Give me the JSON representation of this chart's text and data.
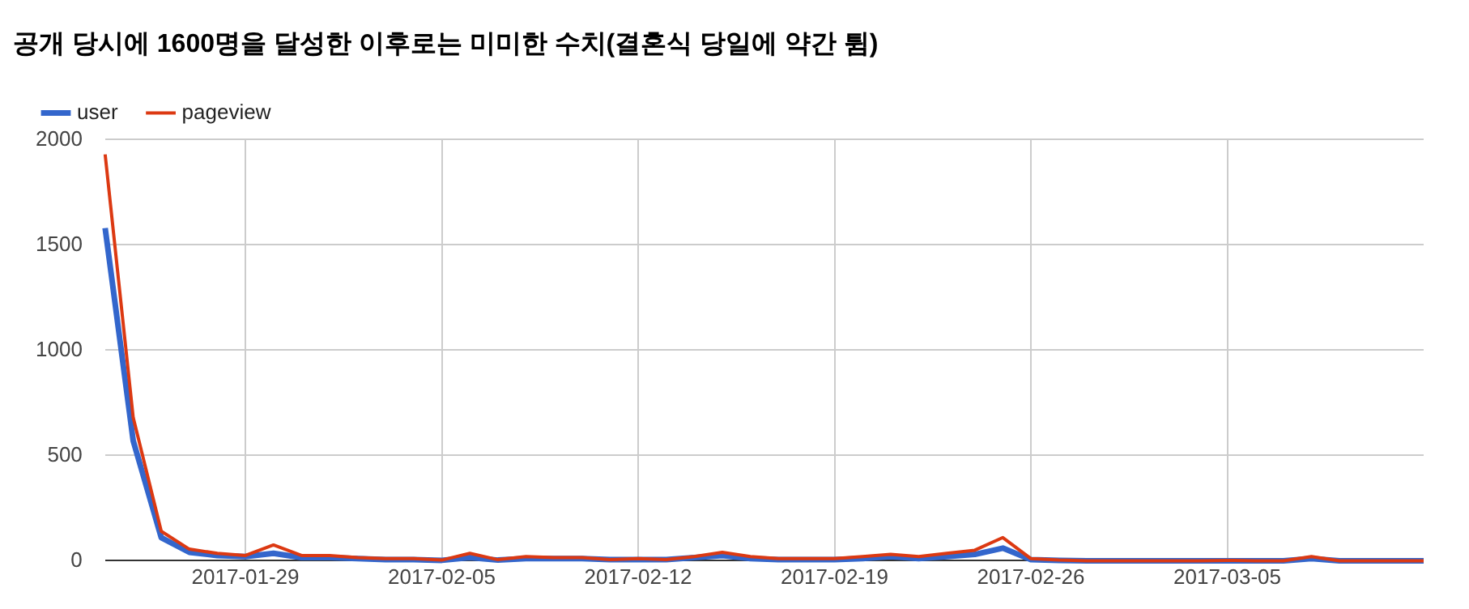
{
  "chart_data": {
    "type": "line",
    "title": "공개 당시에 1600명을 달성한 이후로는 미미한 수치(결혼식 당일에 약간 튐)",
    "x": [
      "2017-01-24",
      "2017-01-25",
      "2017-01-26",
      "2017-01-27",
      "2017-01-28",
      "2017-01-29",
      "2017-01-30",
      "2017-01-31",
      "2017-02-01",
      "2017-02-02",
      "2017-02-03",
      "2017-02-04",
      "2017-02-05",
      "2017-02-06",
      "2017-02-07",
      "2017-02-08",
      "2017-02-09",
      "2017-02-10",
      "2017-02-11",
      "2017-02-12",
      "2017-02-13",
      "2017-02-14",
      "2017-02-15",
      "2017-02-16",
      "2017-02-17",
      "2017-02-18",
      "2017-02-19",
      "2017-02-20",
      "2017-02-21",
      "2017-02-22",
      "2017-02-23",
      "2017-02-24",
      "2017-02-25",
      "2017-02-26",
      "2017-02-27",
      "2017-02-28",
      "2017-03-01",
      "2017-03-02",
      "2017-03-03",
      "2017-03-04",
      "2017-03-05",
      "2017-03-06",
      "2017-03-07",
      "2017-03-08",
      "2017-03-09",
      "2017-03-10",
      "2017-03-11",
      "2017-03-12"
    ],
    "series": [
      {
        "name": "user",
        "color": "#3366cc",
        "values": [
          1580,
          570,
          110,
          40,
          25,
          20,
          35,
          15,
          15,
          10,
          5,
          5,
          2,
          15,
          3,
          10,
          10,
          10,
          5,
          5,
          5,
          15,
          25,
          10,
          5,
          5,
          5,
          10,
          20,
          10,
          20,
          30,
          60,
          5,
          2,
          0,
          0,
          0,
          0,
          0,
          0,
          0,
          0,
          10,
          0,
          0,
          0,
          0
        ]
      },
      {
        "name": "pageview",
        "color": "#dc3912",
        "values": [
          1930,
          680,
          140,
          55,
          35,
          25,
          75,
          25,
          25,
          15,
          10,
          10,
          3,
          35,
          5,
          20,
          15,
          15,
          5,
          10,
          5,
          20,
          40,
          20,
          10,
          10,
          10,
          20,
          30,
          20,
          35,
          50,
          110,
          10,
          3,
          0,
          0,
          0,
          0,
          0,
          2,
          0,
          0,
          20,
          0,
          0,
          0,
          0
        ]
      }
    ],
    "xlim": [
      "2017-01-24",
      "2017-03-12"
    ],
    "xticks": [
      {
        "value": "2017-01-29",
        "label": "2017-01-29"
      },
      {
        "value": "2017-02-05",
        "label": "2017-02-05"
      },
      {
        "value": "2017-02-12",
        "label": "2017-02-12"
      },
      {
        "value": "2017-02-19",
        "label": "2017-02-19"
      },
      {
        "value": "2017-02-26",
        "label": "2017-02-26"
      },
      {
        "value": "2017-03-05",
        "label": "2017-03-05"
      }
    ],
    "ylim": [
      0,
      2000
    ],
    "yticks": [
      0,
      500,
      1000,
      1500,
      2000
    ],
    "grid": true,
    "legend": "top left",
    "marker": "none",
    "line_style": "solid"
  }
}
